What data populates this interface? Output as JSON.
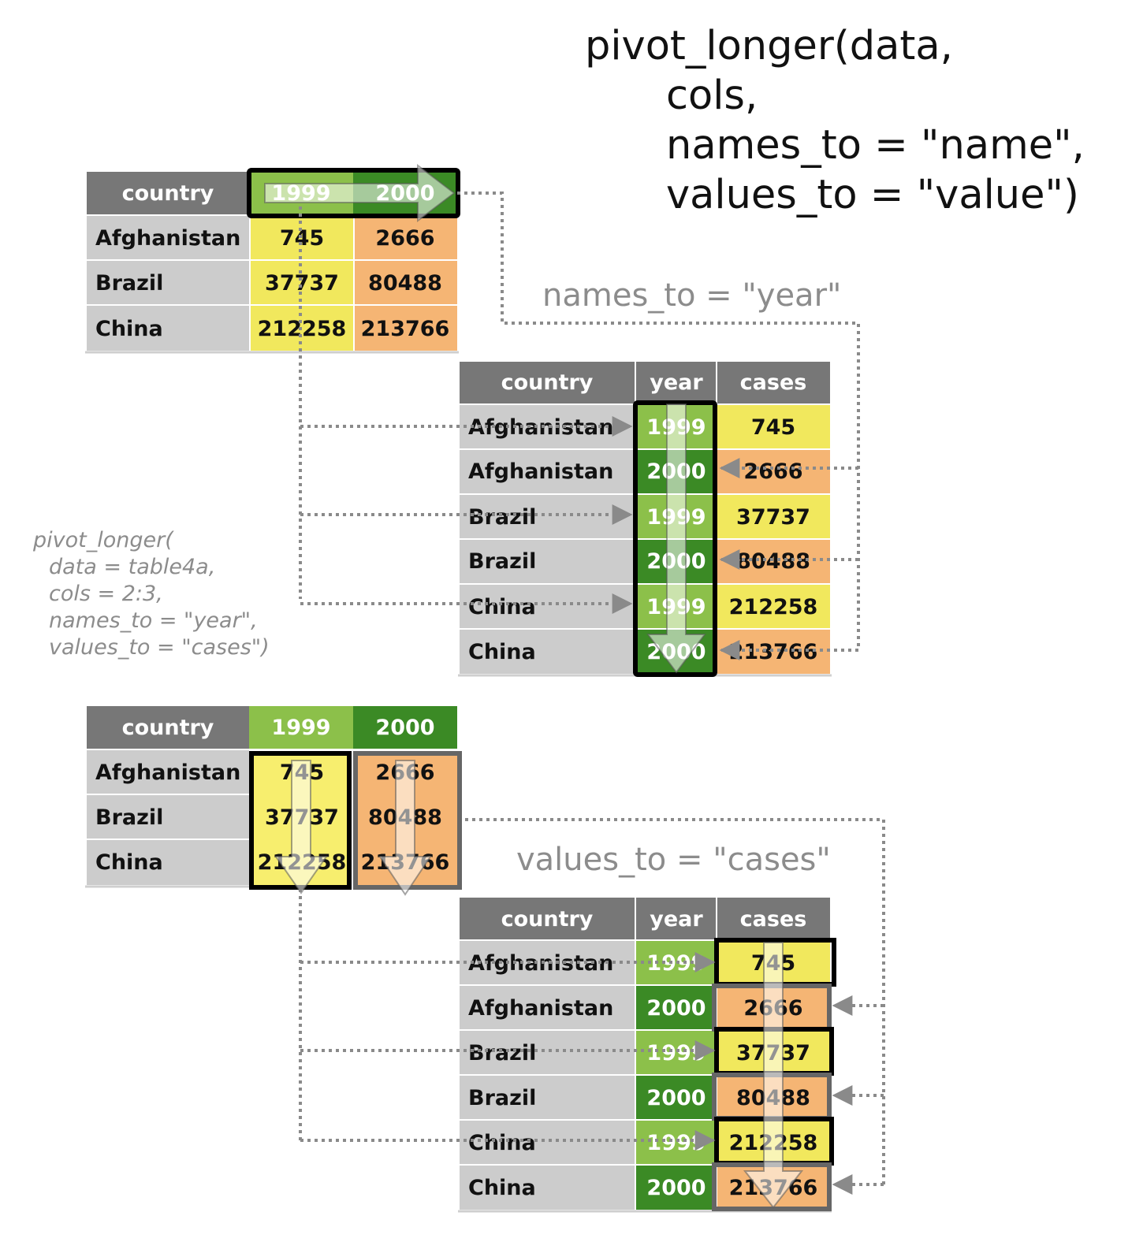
{
  "signature": {
    "line1": "pivot_longer(data,",
    "line2": "cols,",
    "line3": "names_to = \"name\",",
    "line4": "values_to = \"value\")"
  },
  "labels": {
    "names_to": "names_to = \"year\"",
    "values_to": "values_to = \"cases\""
  },
  "code": {
    "line1": "pivot_longer(",
    "line2": "data = table4a,",
    "line3": "cols = 2:3,",
    "line4": "names_to = \"year\",",
    "line5": "values_to = \"cases\")"
  },
  "wide_table": {
    "headers": [
      "country",
      "1999",
      "2000"
    ],
    "rows": [
      {
        "country": "Afghanistan",
        "v1999": "745",
        "v2000": "2666"
      },
      {
        "country": "Brazil",
        "v1999": "37737",
        "v2000": "80488"
      },
      {
        "country": "China",
        "v1999": "212258",
        "v2000": "213766"
      }
    ]
  },
  "long_table": {
    "headers": [
      "country",
      "year",
      "cases"
    ],
    "rows": [
      {
        "country": "Afghanistan",
        "year": "1999",
        "cases": "745"
      },
      {
        "country": "Afghanistan",
        "year": "2000",
        "cases": "2666"
      },
      {
        "country": "Brazil",
        "year": "1999",
        "cases": "37737"
      },
      {
        "country": "Brazil",
        "year": "2000",
        "cases": "80488"
      },
      {
        "country": "China",
        "year": "1999",
        "cases": "212258"
      },
      {
        "country": "China",
        "year": "2000",
        "cases": "213766"
      }
    ]
  },
  "colors": {
    "header_gray": "#777777",
    "country_gray": "#cccccc",
    "green_1999": "#8cc04a",
    "green_2000": "#3b8a25",
    "yellow": "#f1e85d",
    "orange": "#f5b574",
    "connector": "#8a8a8a"
  }
}
